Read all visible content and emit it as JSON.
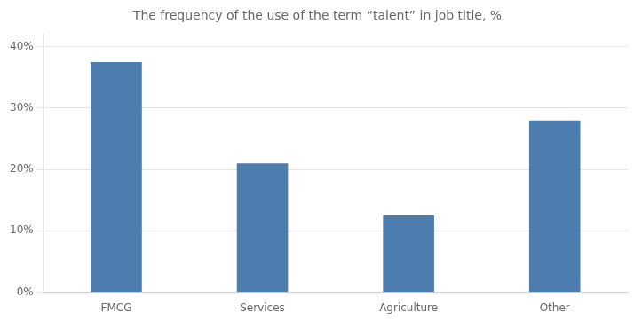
{
  "chart_data": {
    "type": "bar",
    "title": "The frequency of the use of the term “talent” in job title, %",
    "categories": [
      "FMCG",
      "Services",
      "Agriculture",
      "Other"
    ],
    "values": [
      0.375,
      0.21,
      0.125,
      0.28
    ],
    "color": "#4d7dae",
    "ylim": [
      0,
      0.42
    ],
    "yticks": [
      {
        "value": 0,
        "label": "0%"
      },
      {
        "value": 0.1,
        "label": "10%"
      },
      {
        "value": 0.2,
        "label": "20%"
      },
      {
        "value": 0.3,
        "label": "30%"
      },
      {
        "value": 0.4,
        "label": "40%"
      }
    ],
    "grid": true
  }
}
